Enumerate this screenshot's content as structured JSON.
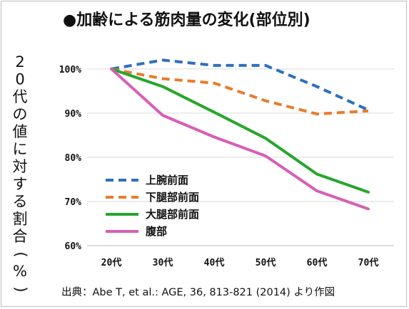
{
  "chart_data": {
    "type": "line",
    "title": "●加齢による筋肉量の変化(部位別)",
    "ylabel": "20代の値に対する割合(%)",
    "xlabel": "",
    "categories": [
      "20代",
      "30代",
      "40代",
      "50代",
      "60代",
      "70代"
    ],
    "y_ticks": [
      "60%",
      "70%",
      "80%",
      "90%",
      "100%"
    ],
    "ylim": [
      60,
      104
    ],
    "grid": "horizontal",
    "legend_position": "left-middle",
    "series": [
      {
        "name": "上腕前面",
        "values": [
          100,
          102,
          100.8,
          100.8,
          96,
          90.7
        ],
        "color": "#2e6fbf",
        "dash": true
      },
      {
        "name": "下腿部前面",
        "values": [
          100,
          97.8,
          96.8,
          92.8,
          89.8,
          90.5
        ],
        "color": "#e87c2b",
        "dash": true
      },
      {
        "name": "大腿部前面",
        "values": [
          100,
          96,
          90.2,
          84.3,
          76.2,
          72.1
        ],
        "color": "#27a52e",
        "dash": false
      },
      {
        "name": "腹部",
        "values": [
          100,
          89.5,
          84.6,
          80.3,
          72.4,
          68.3
        ],
        "color": "#d85eb4",
        "dash": false
      }
    ],
    "source": "出典：Abe T, et al.: AGE, 36, 813-821 (2014) より作図"
  }
}
